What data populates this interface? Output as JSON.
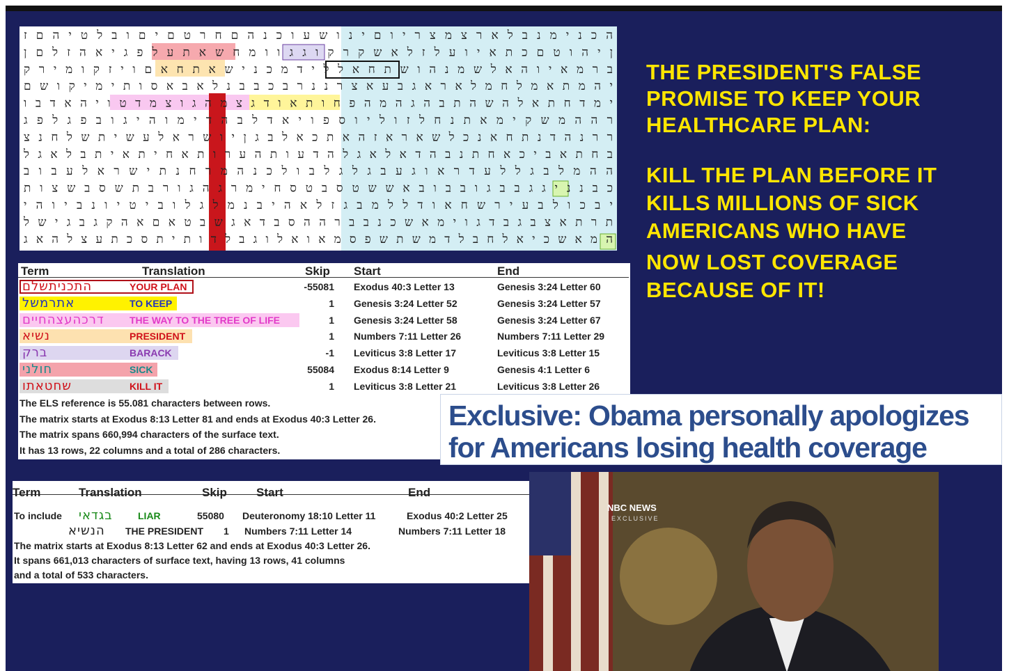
{
  "matrix": {
    "rows": [
      "זםהיטלבוםיםטרחםהנכועשוניםוירצמצראלבנמינכה",
      "ןםלזהאיגפלעתאשחמווגגוקרקשאלזלעויאתכםטוהין",
      "קרימוקזיוםאחתאשינכמדיללאחתשוהנמשלאהויאמרב",
      "םשוקימיתוסאבאלנבבכברננרצאעבגאראלמחלמאתמהי",
      "ובדאהיוטדמצוגהמצגדואתוחפהמהגהבתהשהלאתחדמי",
      "גפלגפבוגיהומידהבלדאיופסוילוזלחנתאמיקשמההר",
      "צנחלשתישעלארשויןגבלאכתאהזאראשלכנאחתנדהנרר",
      "לגאלבתיאתיחאתורעהתועדהלגאלאדהבנתחאכיבאתחב",
      "בובעלארשיתנחרמהנכלובלגלגבעגוארדעללגבלמהה",
      "תוצשבסשתברוגהגרמיחסטבסטששאבובבוגבבגגיננבכ",
      "יהויבנויטיבולגלמנביהאלזגבמללדואחשריעבלוכבי",
      "לשיגבגקהאםאטבשגאדבסההרבבנכשאמיוגדבגבצאתרת",
      "גאהלצעתכסתיתודלבגולאואמספשתשמדלבחלאיכשאמה"
    ]
  },
  "table1": {
    "header": [
      "Term",
      "Translation",
      "Skip",
      "Start",
      "End"
    ],
    "rows": [
      [
        "םלשתינכתה",
        "YOUR PLAN",
        -55081,
        "Exodus 40:3 Letter 13",
        "Genesis 3:24 Letter 60"
      ],
      [
        "לשמרתא",
        "TO KEEP",
        1,
        "Genesis 3:24 Letter 52",
        "Genesis 3:24 Letter 57"
      ],
      [
        "םייחהצעהכרד",
        "THE WAY TO THE TREE OF LIFE",
        1,
        "Genesis 3:24 Letter 58",
        "Genesis 3:24 Letter 67"
      ],
      [
        "אישנ",
        "PRESIDENT",
        1,
        "Numbers 7:11 Letter 26",
        "Numbers 7:11 Letter 29"
      ],
      [
        "קרב",
        "BARACK",
        -1,
        "Leviticus 3:8 Letter 17",
        "Leviticus 3:8 Letter 15"
      ],
      [
        "ינלוח",
        "SICK",
        55084,
        "Exodus 8:14 Letter 9",
        "Genesis 4:1 Letter 6"
      ],
      [
        "ותאטחש",
        "KILL IT",
        1,
        "Leviticus 3:8 Letter 21",
        "Leviticus 3:8 Letter 26"
      ]
    ],
    "notes": [
      "The ELS reference is 55.081  characters between rows.",
      "The matrix starts at Exodus 8:13 Letter 81 and ends at Exodus 40:3 Letter 26.",
      "The matrix spans 660,994 characters of the surface text.",
      "It has 13 rows, 22 columns and a total of 286 characters."
    ]
  },
  "caption": {
    "heading": [
      "THE PRESIDENT'S FALSE",
      "PROMISE TO KEEP YOUR",
      "HEALTHCARE PLAN:"
    ],
    "body": [
      "KILL THE PLAN BEFORE IT",
      "KILLS MILLIONS OF SICK",
      "AMERICANS WHO HAVE",
      "NOW LOST COVERAGE",
      "BECAUSE OF IT!"
    ]
  },
  "headline": [
    "Exclusive: Obama personally apologizes",
    "for Americans losing health coverage"
  ],
  "table2": {
    "header": [
      "Term",
      "Translation",
      "Skip",
      "Start",
      "End"
    ],
    "label": "To include",
    "rows": [
      [
        "יאדגב",
        "LIAR",
        55080,
        "Deuteronomy 18:10 Letter 11",
        "Exodus 40:2 Letter 25"
      ],
      [
        "אישנה",
        "THE PRESIDENT",
        1,
        "Numbers 7:11 Letter 14",
        "Numbers 7:11 Letter 18"
      ]
    ],
    "notes": [
      "The matrix starts at Exodus 8:13 Letter 62 and ends at Exodus 40:3 Letter 26.",
      "It spans 661,013 characters of surface text,  having 13 rows, 41 columns",
      "and a total of 533 characters."
    ]
  },
  "video": {
    "logo": "NBC NEWS",
    "sub": "EXCLUSIVE"
  }
}
